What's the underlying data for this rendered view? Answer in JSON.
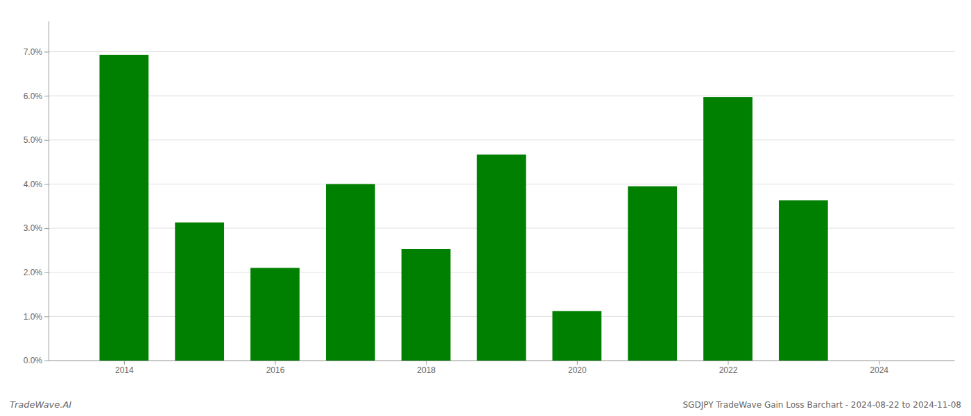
{
  "chart_data": {
    "type": "bar",
    "title": "SGDJPY TradeWave Gain Loss Barchart - 2024-08-22 to 2024-11-08",
    "annotations": [
      "TradeWave.AI"
    ],
    "x": [
      2014,
      2015,
      2016,
      2017,
      2018,
      2019,
      2020,
      2021,
      2022,
      2023
    ],
    "values": [
      0.0693,
      0.0313,
      0.021,
      0.04,
      0.0253,
      0.0467,
      0.0112,
      0.0395,
      0.0597,
      0.0363
    ],
    "color": "#008000",
    "xlim": [
      2013.0,
      2025.0
    ],
    "xticks": [
      2014,
      2016,
      2018,
      2020,
      2022,
      2024
    ],
    "ylim": [
      0,
      0.077
    ],
    "yticks": [
      {
        "value": 0.0,
        "label": "0.0%"
      },
      {
        "value": 0.01,
        "label": "1.0%"
      },
      {
        "value": 0.02,
        "label": "2.0%"
      },
      {
        "value": 0.03,
        "label": "3.0%"
      },
      {
        "value": 0.04,
        "label": "4.0%"
      },
      {
        "value": 0.05,
        "label": "5.0%"
      },
      {
        "value": 0.06,
        "label": "6.0%"
      },
      {
        "value": 0.07,
        "label": "7.0%"
      }
    ],
    "grid": true
  }
}
